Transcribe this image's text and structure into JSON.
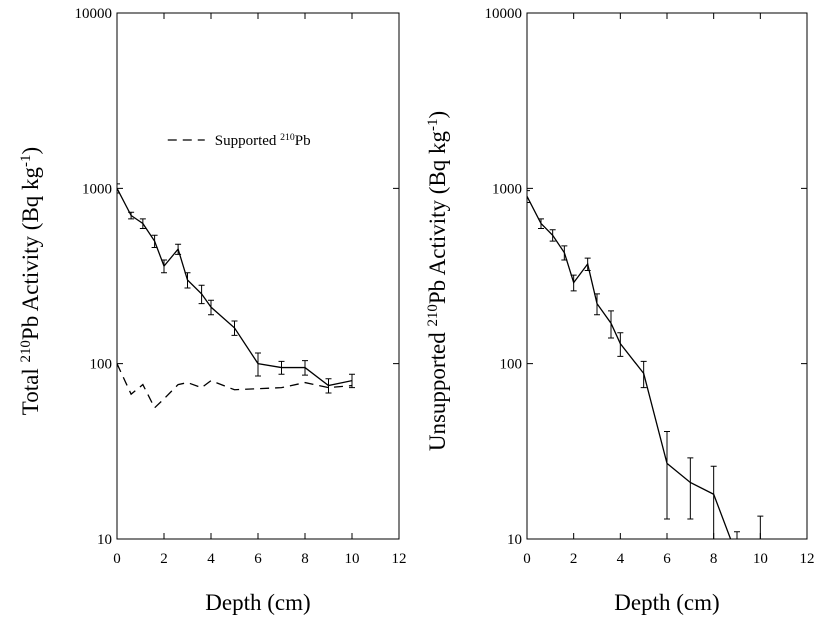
{
  "chart_data": [
    {
      "type": "line",
      "yscale": "log",
      "ylabel": [
        "Total ",
        "210",
        "Pb Activity (Bq kg",
        "-1",
        ")"
      ],
      "xlabel": "Depth (cm)",
      "xlim": [
        0,
        12
      ],
      "xticks": [
        0,
        2,
        4,
        6,
        8,
        10,
        12
      ],
      "ylim": [
        10,
        10000
      ],
      "yticks": [
        10,
        100,
        1000,
        10000
      ],
      "legend": "upper center",
      "x": [
        0,
        0.6,
        1.1,
        1.6,
        2.0,
        2.6,
        3.0,
        3.6,
        4.0,
        5.0,
        6.0,
        7.0,
        8.0,
        9.0,
        10.0
      ],
      "series": [
        {
          "name": [
            "Supported ",
            "210",
            "Pb"
          ],
          "color": "#000000",
          "linestyle": "dashed",
          "values": [
            100,
            67,
            76,
            56,
            63,
            76,
            78,
            73,
            80,
            71,
            72,
            73,
            78,
            73,
            75
          ]
        },
        {
          "color": "#000000",
          "linestyle": "solid",
          "values": [
            1000,
            700,
            630,
            500,
            360,
            450,
            300,
            250,
            210,
            160,
            100,
            95,
            95,
            75,
            80
          ],
          "errors": [
            60,
            30,
            40,
            40,
            30,
            30,
            30,
            30,
            20,
            15,
            15,
            8,
            9,
            7,
            7
          ]
        }
      ]
    },
    {
      "type": "line",
      "yscale": "log",
      "ylabel": [
        "Unsupported ",
        "210",
        "Pb Activity (Bq kg",
        "-1",
        ")"
      ],
      "xlabel": "Depth (cm)",
      "xlim": [
        0,
        12
      ],
      "xticks": [
        0,
        2,
        4,
        6,
        8,
        10,
        12
      ],
      "ylim": [
        10,
        10000
      ],
      "yticks": [
        10,
        100,
        1000,
        10000
      ],
      "x": [
        0,
        0.6,
        1.1,
        1.6,
        2.0,
        2.6,
        3.0,
        3.6,
        4.0,
        5.0,
        6.0,
        7.0,
        8.0,
        9.0,
        10.0
      ],
      "series": [
        {
          "color": "#000000",
          "linestyle": "solid",
          "values": [
            900,
            630,
            540,
            430,
            290,
            370,
            220,
            170,
            130,
            88,
            27,
            21,
            18,
            8,
            9
          ],
          "errors": [
            70,
            40,
            40,
            40,
            30,
            30,
            30,
            30,
            20,
            15,
            14,
            8,
            8,
            3,
            4.5
          ]
        }
      ]
    }
  ]
}
